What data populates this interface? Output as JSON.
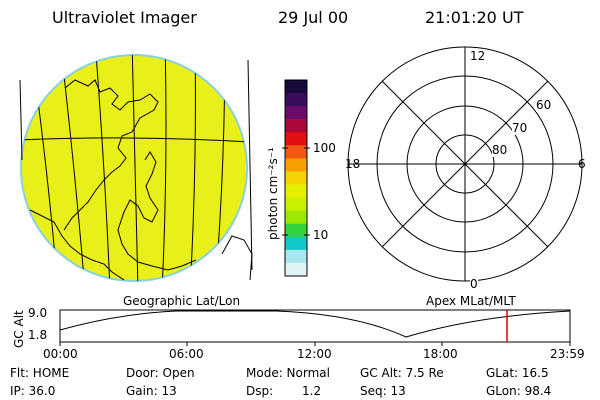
{
  "header": {
    "title": "Ultraviolet Imager",
    "date": "29 Jul 00",
    "time": "21:01:20 UT"
  },
  "colorbar": {
    "unit_label": "photon cm⁻²s⁻¹",
    "tick_100": "100",
    "tick_10": "10",
    "colors": [
      "#1a0a3a",
      "#3b0a5a",
      "#6a0a6a",
      "#aa0a3a",
      "#e01010",
      "#f05a10",
      "#f7a000",
      "#f5d300",
      "#e6ef00",
      "#c8f000",
      "#9be800",
      "#33d23a",
      "#10c8c8",
      "#a8e8f0",
      "#e0f4f8"
    ]
  },
  "polar_plot": {
    "label_top": "12",
    "label_bottom": "0",
    "label_left": "18",
    "label_right": "6",
    "ring_labels": [
      "60",
      "70",
      "80"
    ]
  },
  "image": {
    "fill_color": "#e9ef18"
  },
  "timeline": {
    "left_label": "Geographic Lat/Lon",
    "right_label": "Apex MLat/MLT",
    "y_axis_title": "GC Alt",
    "y_ticks": [
      "9.0",
      "1.8"
    ],
    "x_ticks": [
      "00:00",
      "06:00",
      "12:00",
      "18:00",
      "23:59"
    ],
    "marker_color": "#e00000"
  },
  "info": {
    "flt": "Flt: HOME",
    "ip": "IP: 36.0",
    "door": "Door: Open",
    "gain": "Gain: 13",
    "mode": "Mode: Normal",
    "dsp_label": "Dsp:",
    "dsp_value": "1.2",
    "gc_alt": "GC Alt: 7.5 Re",
    "seq": "Seq: 13",
    "glat": "GLat:  16.5",
    "glon": "GLon:  98.4"
  }
}
